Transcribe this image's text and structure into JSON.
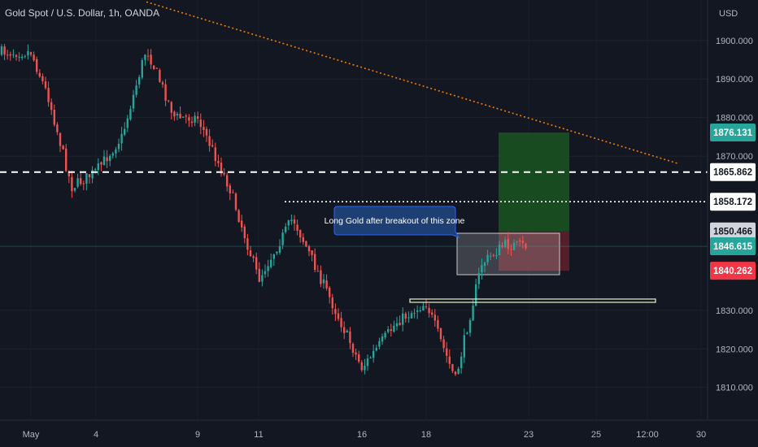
{
  "header": {
    "title": "Gold Spot / U.S. Dollar, 1h, OANDA"
  },
  "price_axis": {
    "currency": "USD",
    "ticks": [
      "1900.000",
      "1890.000",
      "1880.000",
      "1870.000",
      "1830.000",
      "1820.000",
      "1810.000"
    ],
    "tags": [
      {
        "label": "1876.131",
        "bg": "#26a69a",
        "fg": "#ffffff",
        "kind": "target"
      },
      {
        "label": "1865.862",
        "bg": "#ffffff",
        "fg": "#131722",
        "kind": "resistance"
      },
      {
        "label": "1858.172",
        "bg": "#ffffff",
        "fg": "#131722",
        "kind": "high"
      },
      {
        "label": "1850.466",
        "bg": "#d1d4dc",
        "fg": "#131722",
        "kind": "entry"
      },
      {
        "label": "1846.615",
        "bg": "#26a69a",
        "fg": "#ffffff",
        "kind": "last"
      },
      {
        "label": "1840.262",
        "bg": "#f23645",
        "fg": "#ffffff",
        "kind": "stop"
      }
    ]
  },
  "time_axis": {
    "labels": [
      "May",
      "4",
      "9",
      "11",
      "16",
      "18",
      "23",
      "25",
      "12:00",
      "30"
    ]
  },
  "annotation": {
    "text": "Long Gold after breakout of this zone"
  },
  "colors": {
    "up": "#26a69a",
    "down": "#ef5350",
    "background": "#131722",
    "trendline": "#f57c00"
  },
  "chart_data": {
    "type": "candlestick",
    "title": "Gold Spot / U.S. Dollar, 1h, OANDA",
    "ylabel": "USD",
    "ylim": [
      1801.5,
      1910.5
    ],
    "close_path": [
      [
        "May",
        1897
      ],
      [
        "May 2",
        1885
      ],
      [
        "May 3",
        1862
      ],
      [
        "May 4",
        1866
      ],
      [
        "May 5",
        1875
      ],
      [
        "May 6",
        1898
      ],
      [
        "May 7",
        1880
      ],
      [
        "May 9",
        1880
      ],
      [
        "May 10",
        1862
      ],
      [
        "May 11",
        1838
      ],
      [
        "May 12",
        1854
      ],
      [
        "May 13",
        1838
      ],
      [
        "May 16",
        1815
      ],
      [
        "May 17",
        1827
      ],
      [
        "May 18",
        1832
      ],
      [
        "May 19",
        1812
      ],
      [
        "May 20",
        1842
      ],
      [
        "May 22",
        1847
      ],
      [
        "May 23",
        1846.615
      ]
    ],
    "levels": {
      "dashed_resistance": 1865.862,
      "dotted_high": 1858.172,
      "entry": 1850.466,
      "last_price": 1846.615,
      "stop_loss": 1840.262,
      "take_profit": 1876.131,
      "support_zone": 1832.5
    },
    "trendline": {
      "from": [
        "May 6",
        1910
      ],
      "to": [
        "May 26",
        1868
      ]
    },
    "last_price": 1846.615
  }
}
